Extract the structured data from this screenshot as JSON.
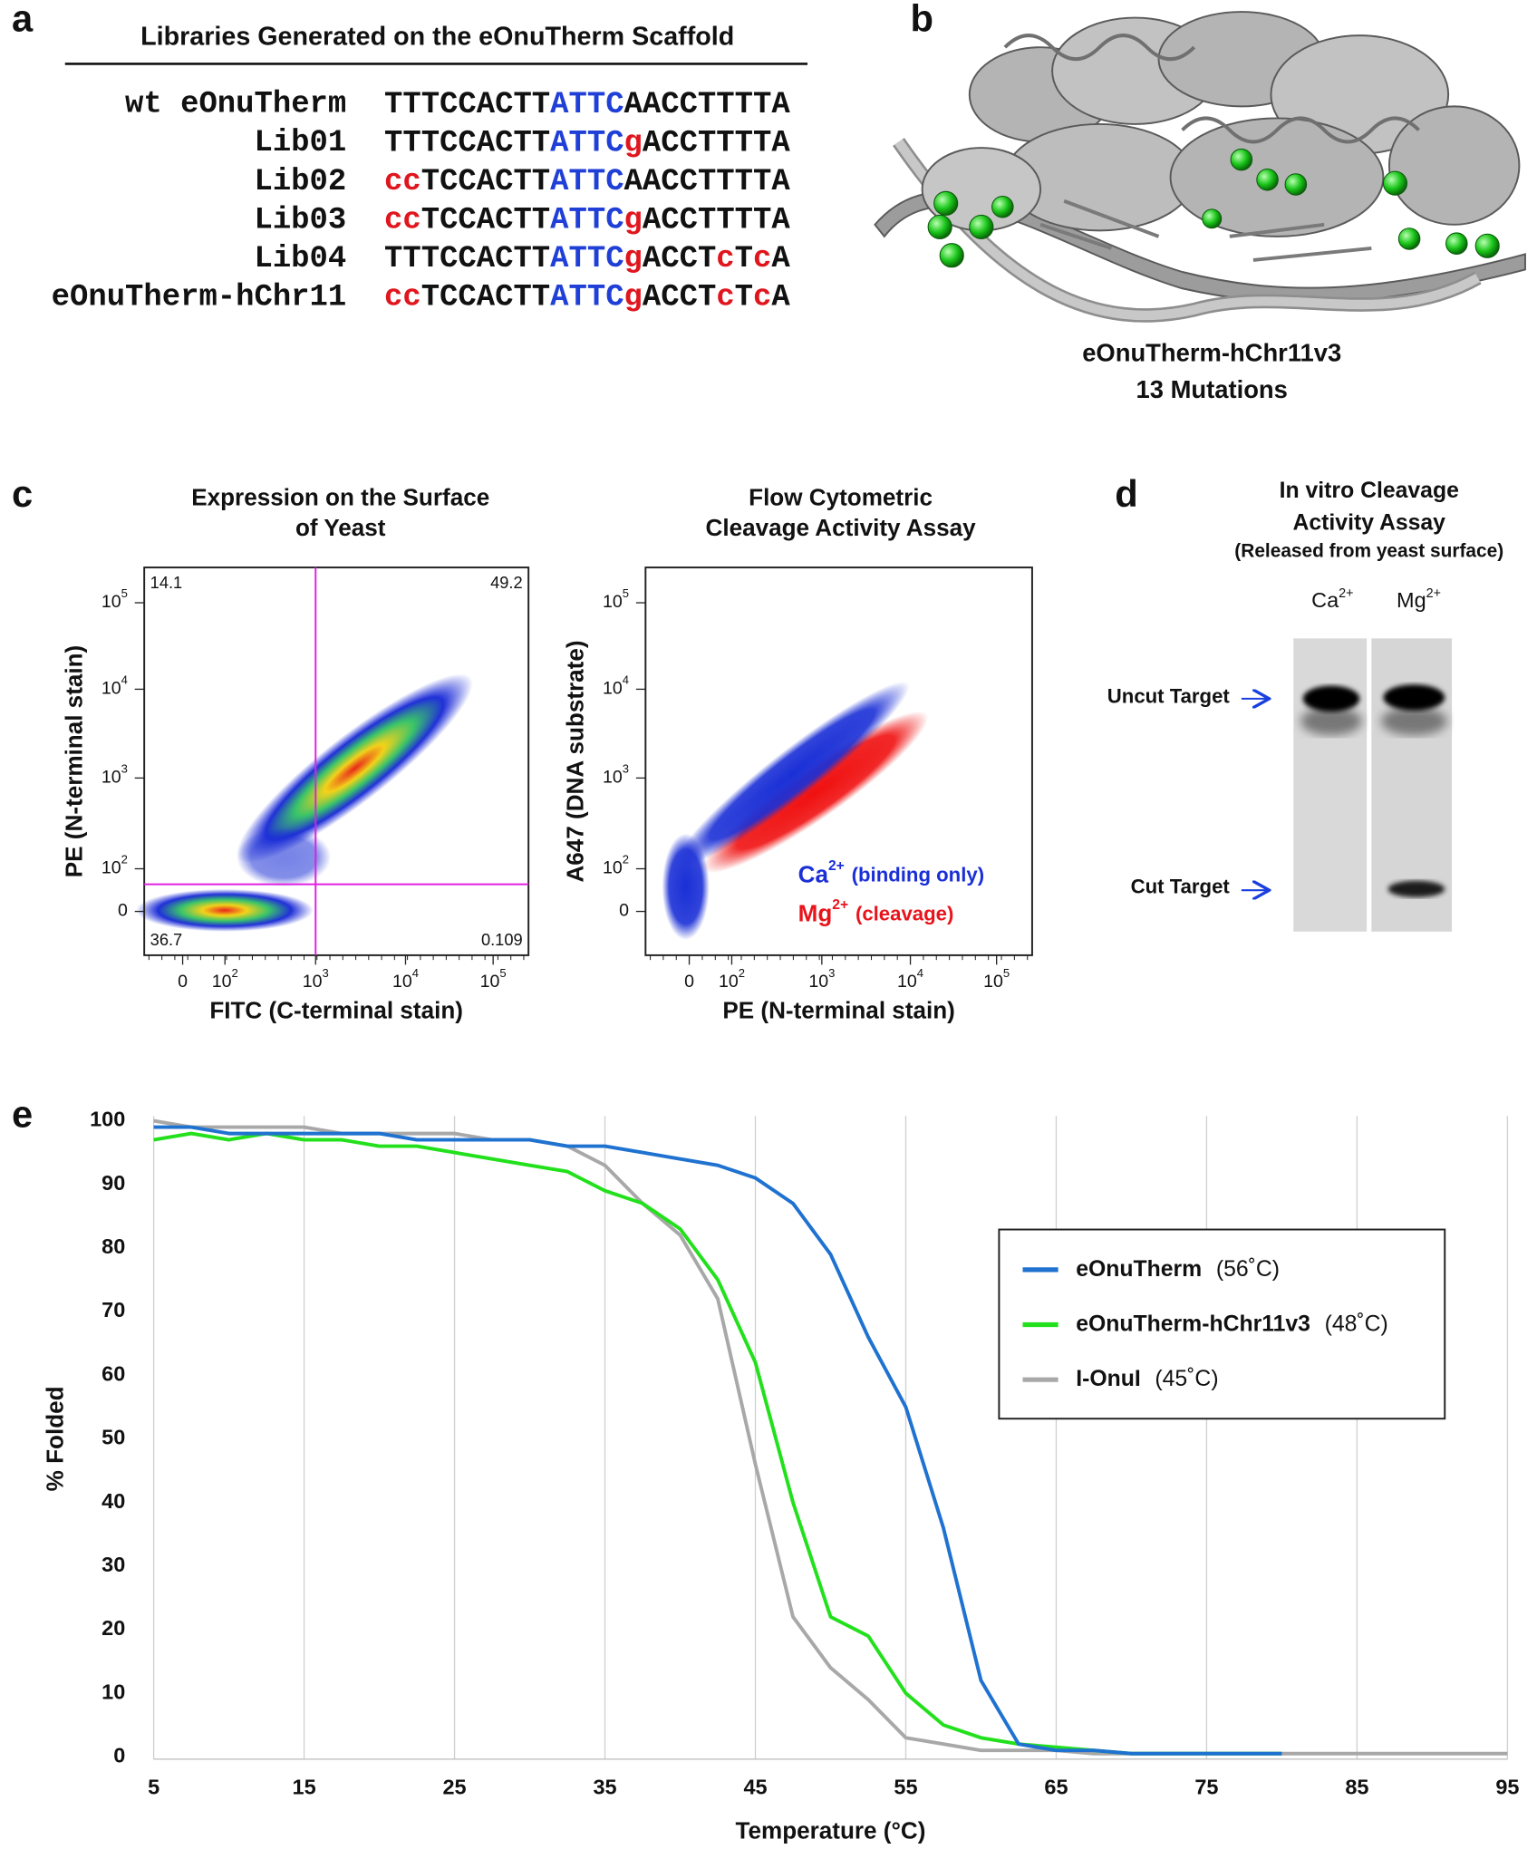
{
  "panel_labels": [
    "a",
    "b",
    "c",
    "d",
    "e"
  ],
  "panel_a": {
    "title": "Libraries Generated on the eOnuTherm Scaffold",
    "rows": [
      {
        "name": "wt eOnuTherm",
        "sequence": [
          {
            "text": "TTTCCACTT",
            "color": "#111111"
          },
          {
            "text": "ATTC",
            "color": "#1f3fd6"
          },
          {
            "text": "AACCTTTTA",
            "color": "#111111"
          }
        ]
      },
      {
        "name": "Lib01",
        "sequence": [
          {
            "text": "TTTCCACTT",
            "color": "#111111"
          },
          {
            "text": "ATTC",
            "color": "#1f3fd6"
          },
          {
            "text": "g",
            "color": "#e0161e"
          },
          {
            "text": "ACCTTTTA",
            "color": "#111111"
          }
        ]
      },
      {
        "name": "Lib02",
        "sequence": [
          {
            "text": "cc",
            "color": "#e0161e"
          },
          {
            "text": "TCCACTT",
            "color": "#111111"
          },
          {
            "text": "ATTC",
            "color": "#1f3fd6"
          },
          {
            "text": "AACCTTTTA",
            "color": "#111111"
          }
        ]
      },
      {
        "name": "Lib03",
        "sequence": [
          {
            "text": "cc",
            "color": "#e0161e"
          },
          {
            "text": "TCCACTT",
            "color": "#111111"
          },
          {
            "text": "ATTC",
            "color": "#1f3fd6"
          },
          {
            "text": "g",
            "color": "#e0161e"
          },
          {
            "text": "ACCTTTTA",
            "color": "#111111"
          }
        ]
      },
      {
        "name": "Lib04",
        "sequence": [
          {
            "text": "TTTCCACTT",
            "color": "#111111"
          },
          {
            "text": "ATTC",
            "color": "#1f3fd6"
          },
          {
            "text": "g",
            "color": "#e0161e"
          },
          {
            "text": "ACCT",
            "color": "#111111"
          },
          {
            "text": "c",
            "color": "#e0161e"
          },
          {
            "text": "T",
            "color": "#111111"
          },
          {
            "text": "c",
            "color": "#e0161e"
          },
          {
            "text": "A",
            "color": "#111111"
          }
        ]
      },
      {
        "name": "eOnuTherm-hChr11",
        "sequence": [
          {
            "text": "cc",
            "color": "#e0161e"
          },
          {
            "text": "TCCACTT",
            "color": "#111111"
          },
          {
            "text": "ATTC",
            "color": "#1f3fd6"
          },
          {
            "text": "g",
            "color": "#e0161e"
          },
          {
            "text": "ACCT",
            "color": "#111111"
          },
          {
            "text": "c",
            "color": "#e0161e"
          },
          {
            "text": "T",
            "color": "#111111"
          },
          {
            "text": "c",
            "color": "#e0161e"
          },
          {
            "text": "A",
            "color": "#111111"
          }
        ]
      }
    ]
  },
  "panel_b": {
    "caption": [
      "eOnuTherm-hChr11v3",
      "13 Mutations"
    ]
  },
  "panel_c": {
    "plots": [
      {
        "title": [
          "Expression on the Surface",
          "of Yeast"
        ],
        "x_label": "FITC (C-terminal stain)",
        "y_label": "PE (N-terminal stain)",
        "x_ticks": [
          {
            "base": "0"
          },
          {
            "base": "10",
            "exp": "2"
          },
          {
            "base": "10",
            "exp": "3"
          },
          {
            "base": "10",
            "exp": "4"
          },
          {
            "base": "10",
            "exp": "5"
          }
        ],
        "y_ticks": [
          {
            "base": "0"
          },
          {
            "base": "10",
            "exp": "2"
          },
          {
            "base": "10",
            "exp": "3"
          },
          {
            "base": "10",
            "exp": "4"
          },
          {
            "base": "10",
            "exp": "5"
          }
        ],
        "quadrant_labels": [
          "14.1",
          "49.2",
          "36.7",
          "0.109"
        ]
      },
      {
        "title": [
          "Flow Cytometric",
          "Cleavage Activity Assay"
        ],
        "x_label": "PE (N-terminal stain)",
        "y_label": "A647 (DNA substrate)",
        "x_ticks": [
          {
            "base": "0"
          },
          {
            "base": "10",
            "exp": "2"
          },
          {
            "base": "10",
            "exp": "3"
          },
          {
            "base": "10",
            "exp": "4"
          },
          {
            "base": "10",
            "exp": "5"
          }
        ],
        "y_ticks": [
          {
            "base": "0"
          },
          {
            "base": "10",
            "exp": "2"
          },
          {
            "base": "10",
            "exp": "3"
          },
          {
            "base": "10",
            "exp": "4"
          },
          {
            "base": "10",
            "exp": "5"
          }
        ],
        "legend": [
          {
            "text": "Ca",
            "sup": "2+",
            "note": "(binding only)",
            "color": "#1a2fd6"
          },
          {
            "text": "Mg",
            "sup": "2+",
            "note": "(cleavage)",
            "color": "#e8141b"
          }
        ]
      }
    ]
  },
  "panel_d": {
    "title": [
      "In vitro Cleavage",
      "Activity Assay"
    ],
    "subtitle": "(Released from yeast surface)",
    "lanes": [
      {
        "text": "Ca",
        "sup": "2+"
      },
      {
        "text": "Mg",
        "sup": "2+"
      }
    ],
    "bands": [
      "Uncut Target",
      "Cut Target"
    ]
  },
  "chart_data": {
    "type": "line",
    "x_label": "Temperature (°C)",
    "y_label": "% Folded",
    "x": [
      5,
      7.5,
      10,
      12.5,
      15,
      17.5,
      20,
      22.5,
      25,
      27.5,
      30,
      32.5,
      35,
      37.5,
      40,
      42.5,
      45,
      47.5,
      50,
      52.5,
      55,
      57.5,
      60,
      62.5,
      65,
      67.5,
      70,
      72.5,
      75,
      77.5,
      80,
      82.5,
      85,
      87.5,
      90,
      92.5,
      95
    ],
    "series": [
      {
        "name": "eOnuTherm",
        "tm": "(56˚C)",
        "color": "#1f72d0",
        "values": [
          99,
          99,
          98,
          98,
          98,
          98,
          98,
          97,
          97,
          97,
          97,
          96,
          96,
          95,
          94,
          93,
          91,
          87,
          79,
          66,
          55,
          36,
          12,
          2,
          1,
          1,
          0.5,
          0.5,
          0.5,
          0.5,
          0.5,
          null,
          null,
          null,
          null,
          null,
          null
        ]
      },
      {
        "name": "eOnuTherm-hChr11v3",
        "tm": "(48˚C)",
        "color": "#22e01c",
        "values": [
          97,
          98,
          97,
          98,
          97,
          97,
          96,
          96,
          95,
          94,
          93,
          92,
          89,
          87,
          83,
          75,
          62,
          40,
          22,
          19,
          10,
          5,
          3,
          2,
          1.5,
          1,
          0.5,
          0.5,
          0.5,
          0.5,
          0.5,
          null,
          null,
          null,
          null,
          null,
          null
        ]
      },
      {
        "name": "I-OnuI",
        "tm": "(45˚C)",
        "color": "#a8a8a8",
        "values": [
          100,
          99,
          99,
          99,
          99,
          98,
          98,
          98,
          98,
          97,
          97,
          96,
          93,
          87,
          82,
          72,
          46,
          22,
          14,
          9,
          3,
          2,
          1,
          1,
          1,
          0.5,
          0.5,
          0.5,
          0.5,
          0.5,
          0.5,
          0.5,
          0.5,
          0.5,
          0.5,
          0.5,
          0.5
        ]
      }
    ],
    "xlim": [
      5,
      95
    ],
    "ylim": [
      0,
      100
    ],
    "xticks": [
      5,
      15,
      25,
      35,
      45,
      55,
      65,
      75,
      85,
      95
    ],
    "yticks": [
      0,
      10,
      20,
      30,
      40,
      50,
      60,
      70,
      80,
      90,
      100
    ],
    "grid": true
  }
}
